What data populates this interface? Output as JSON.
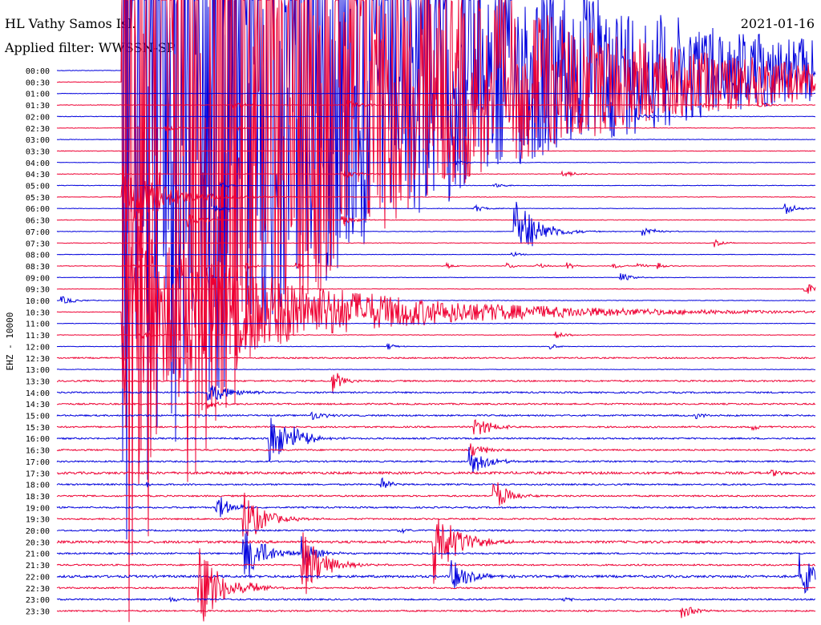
{
  "header": {
    "station": "HL Vathy  Samos Isl.",
    "filter": "Applied filter: WWSSN-SP",
    "date": "2021-01-16"
  },
  "chart_data": {
    "type": "line",
    "title": "HL Vathy  Samos Isl.",
    "ylabel": "EHZ - 10000",
    "row_labels": [
      "00:00",
      "00:30",
      "01:00",
      "01:30",
      "02:00",
      "02:30",
      "03:00",
      "03:30",
      "04:00",
      "04:30",
      "05:00",
      "05:30",
      "06:00",
      "06:30",
      "07:00",
      "07:30",
      "08:00",
      "08:30",
      "09:00",
      "09:30",
      "10:00",
      "10:30",
      "11:00",
      "11:30",
      "12:00",
      "12:30",
      "13:00",
      "13:30",
      "14:00",
      "14:30",
      "15:00",
      "15:30",
      "16:00",
      "16:30",
      "17:00",
      "17:30",
      "18:00",
      "18:30",
      "19:00",
      "19:30",
      "20:00",
      "20:30",
      "21:00",
      "21:30",
      "22:00",
      "22:30",
      "23:00",
      "23:30"
    ],
    "row_minutes": 30,
    "colors": {
      "even": "#0000dd",
      "odd": "#ee0033"
    },
    "events": [
      {
        "row": 0,
        "minute": 2.6,
        "amp": 600,
        "decay": 10
      },
      {
        "row": 1,
        "minute": 2.6,
        "amp": 700,
        "decay": 8
      },
      {
        "row": 3,
        "minute": 7.0,
        "amp": 5,
        "decay": 0.5
      },
      {
        "row": 3,
        "minute": 11.5,
        "amp": 6,
        "decay": 0.6
      },
      {
        "row": 3,
        "minute": 25.5,
        "amp": 3,
        "decay": 0.4
      },
      {
        "row": 3,
        "minute": 27.8,
        "amp": 3,
        "decay": 0.5
      },
      {
        "row": 4,
        "minute": 23.0,
        "amp": 4,
        "decay": 0.5
      },
      {
        "row": 5,
        "minute": 4.3,
        "amp": 5,
        "decay": 0.4
      },
      {
        "row": 5,
        "minute": 7.2,
        "amp": 3,
        "decay": 0.3
      },
      {
        "row": 8,
        "minute": 15.8,
        "amp": 3,
        "decay": 0.4
      },
      {
        "row": 9,
        "minute": 11.4,
        "amp": 5,
        "decay": 0.6
      },
      {
        "row": 9,
        "minute": 20.0,
        "amp": 4,
        "decay": 0.5
      },
      {
        "row": 10,
        "minute": 6.5,
        "amp": 4,
        "decay": 0.3
      },
      {
        "row": 10,
        "minute": 17.3,
        "amp": 3,
        "decay": 0.4
      },
      {
        "row": 11,
        "minute": 2.6,
        "amp": 40,
        "decay": 1.5
      },
      {
        "row": 12,
        "minute": 6.2,
        "amp": 6,
        "decay": 0.4
      },
      {
        "row": 12,
        "minute": 16.5,
        "amp": 5,
        "decay": 0.4
      },
      {
        "row": 12,
        "minute": 28.8,
        "amp": 8,
        "decay": 0.4
      },
      {
        "row": 13,
        "minute": 5.2,
        "amp": 9,
        "decay": 0.6
      },
      {
        "row": 13,
        "minute": 11.3,
        "amp": 6,
        "decay": 0.5
      },
      {
        "row": 14,
        "minute": 18.1,
        "amp": 45,
        "decay": 0.8
      },
      {
        "row": 14,
        "minute": 23.2,
        "amp": 6,
        "decay": 0.5
      },
      {
        "row": 15,
        "minute": 26.0,
        "amp": 5,
        "decay": 0.3
      },
      {
        "row": 18,
        "minute": 22.3,
        "amp": 6,
        "decay": 0.4
      },
      {
        "row": 19,
        "minute": 29.6,
        "amp": 7,
        "decay": 0.8
      },
      {
        "row": 20,
        "minute": 0.2,
        "amp": 5,
        "decay": 0.5
      },
      {
        "row": 21,
        "minute": 2.6,
        "amp": 120,
        "decay": 6
      },
      {
        "row": 23,
        "minute": 3.3,
        "amp": 6,
        "decay": 0.5
      },
      {
        "row": 23,
        "minute": 19.7,
        "amp": 5,
        "decay": 0.4
      },
      {
        "row": 24,
        "minute": 13.1,
        "amp": 4,
        "decay": 0.3
      },
      {
        "row": 24,
        "minute": 19.5,
        "amp": 4,
        "decay": 0.3
      },
      {
        "row": 27,
        "minute": 10.9,
        "amp": 18,
        "decay": 0.3
      },
      {
        "row": 28,
        "minute": 6.0,
        "amp": 14,
        "decay": 0.8
      },
      {
        "row": 29,
        "minute": 6.0,
        "amp": 6,
        "decay": 0.4
      },
      {
        "row": 30,
        "minute": 10.1,
        "amp": 6,
        "decay": 0.5
      },
      {
        "row": 30,
        "minute": 25.3,
        "amp": 4,
        "decay": 0.4
      },
      {
        "row": 31,
        "minute": 16.5,
        "amp": 15,
        "decay": 0.6
      },
      {
        "row": 31,
        "minute": 27.5,
        "amp": 4,
        "decay": 0.4
      },
      {
        "row": 32,
        "minute": 8.4,
        "amp": 40,
        "decay": 0.6
      },
      {
        "row": 32,
        "minute": 9.4,
        "amp": 18,
        "decay": 0.5
      },
      {
        "row": 33,
        "minute": 16.4,
        "amp": 10,
        "decay": 0.5
      },
      {
        "row": 34,
        "minute": 16.3,
        "amp": 22,
        "decay": 0.6
      },
      {
        "row": 35,
        "minute": 28.3,
        "amp": 4,
        "decay": 0.3
      },
      {
        "row": 36,
        "minute": 3.6,
        "amp": 4,
        "decay": 0.3
      },
      {
        "row": 36,
        "minute": 12.8,
        "amp": 9,
        "decay": 0.4
      },
      {
        "row": 37,
        "minute": 17.3,
        "amp": 22,
        "decay": 0.5
      },
      {
        "row": 38,
        "minute": 6.3,
        "amp": 18,
        "decay": 0.5
      },
      {
        "row": 39,
        "minute": 7.4,
        "amp": 36,
        "decay": 0.7
      },
      {
        "row": 40,
        "minute": 13.5,
        "amp": 4,
        "decay": 0.3
      },
      {
        "row": 41,
        "minute": 14.9,
        "amp": 55,
        "decay": 0.8
      },
      {
        "row": 42,
        "minute": 7.4,
        "amp": 40,
        "decay": 0.7
      },
      {
        "row": 42,
        "minute": 9.7,
        "amp": 20,
        "decay": 0.5
      },
      {
        "row": 43,
        "minute": 9.7,
        "amp": 48,
        "decay": 0.7
      },
      {
        "row": 44,
        "minute": 15.6,
        "amp": 22,
        "decay": 0.6
      },
      {
        "row": 44,
        "minute": 29.4,
        "amp": 32,
        "decay": 0.6
      },
      {
        "row": 45,
        "minute": 5.6,
        "amp": 55,
        "decay": 0.8
      },
      {
        "row": 45,
        "minute": 7.6,
        "amp": 5,
        "decay": 0.4
      },
      {
        "row": 46,
        "minute": 4.5,
        "amp": 4,
        "decay": 0.3
      },
      {
        "row": 46,
        "minute": 20.0,
        "amp": 3,
        "decay": 0.3
      },
      {
        "row": 47,
        "minute": 24.7,
        "amp": 10,
        "decay": 0.5
      }
    ],
    "clusters": [
      {
        "row": 17,
        "minutes": [
          3.0,
          7.5,
          9.5,
          15.4,
          17.8,
          19.0,
          20.2,
          22.0,
          23.0,
          23.8
        ]
      },
      {
        "row": 16,
        "minutes": [
          18.0
        ]
      }
    ]
  }
}
